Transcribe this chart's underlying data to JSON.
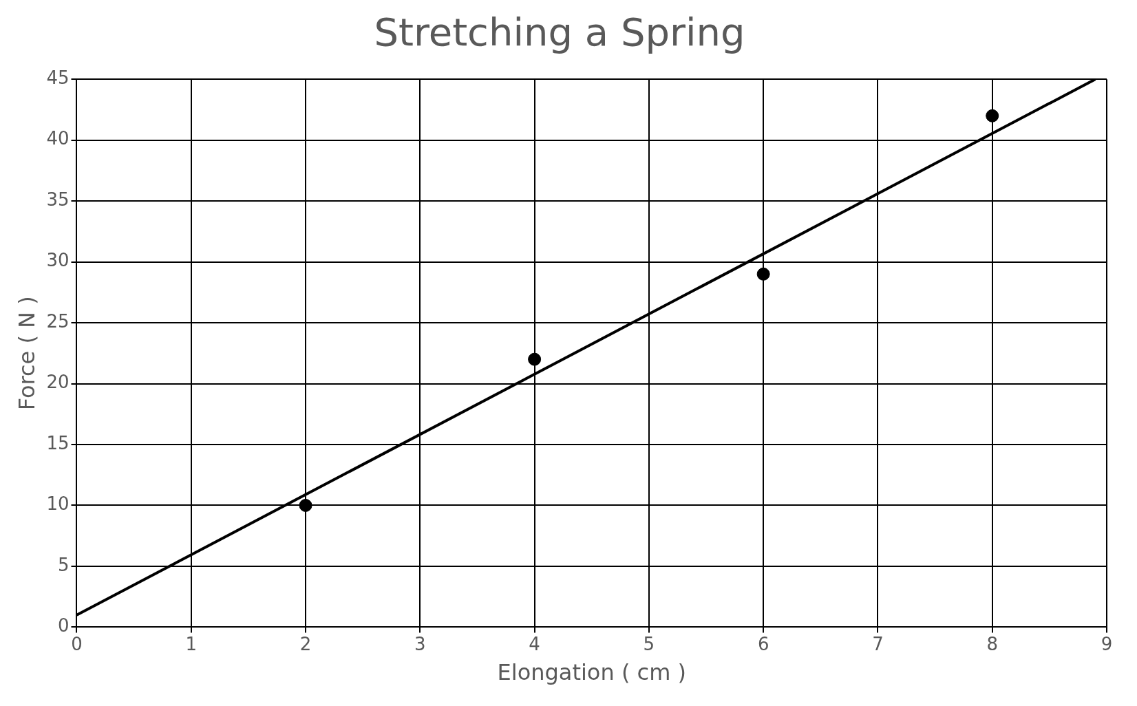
{
  "chart_data": {
    "type": "scatter",
    "title": "Stretching a Spring",
    "xlabel": "Elongation ( cm )",
    "ylabel": "Force ( N )",
    "series": [
      {
        "color": "#000000",
        "x": [
          2,
          4,
          6,
          8
        ],
        "values": [
          10,
          22,
          29,
          42
        ],
        "marker": "circle"
      },
      {
        "type": "line",
        "color": "#000000",
        "x": [
          0,
          8.9
        ],
        "values": [
          1,
          45
        ],
        "marker": "none"
      }
    ],
    "xlim": [
      0,
      9
    ],
    "ylim": [
      0,
      45
    ],
    "xticks": [
      0,
      1,
      2,
      3,
      4,
      5,
      6,
      7,
      8,
      9
    ],
    "yticks": [
      0,
      5,
      10,
      15,
      20,
      25,
      30,
      35,
      40,
      45
    ],
    "grid": true,
    "legend": false
  }
}
